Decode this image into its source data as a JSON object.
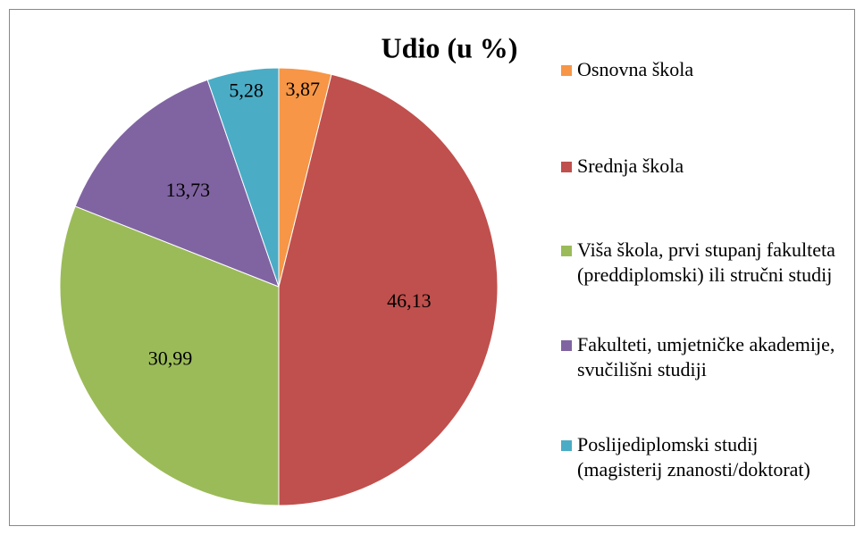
{
  "chart_data": {
    "type": "pie",
    "title": "Udio (u %)",
    "categories": [
      "Osnovna škola",
      "Srednja škola",
      "Viša škola, prvi stupanj fakulteta (preddiplomski) ili stručni studij",
      "Fakulteti, umjetničke akademije, svučilišni studiji",
      "Poslijediplomski studij (magisterij znanosti/doktorat)"
    ],
    "values": [
      3.87,
      46.13,
      30.99,
      13.73,
      5.28
    ],
    "value_labels": [
      "3,87",
      "46,13",
      "30,99",
      "13,73",
      "5,28"
    ],
    "colors": [
      "#f79646",
      "#c0504d",
      "#9bbb59",
      "#8064a2",
      "#4bacc6"
    ],
    "legend": "right"
  }
}
